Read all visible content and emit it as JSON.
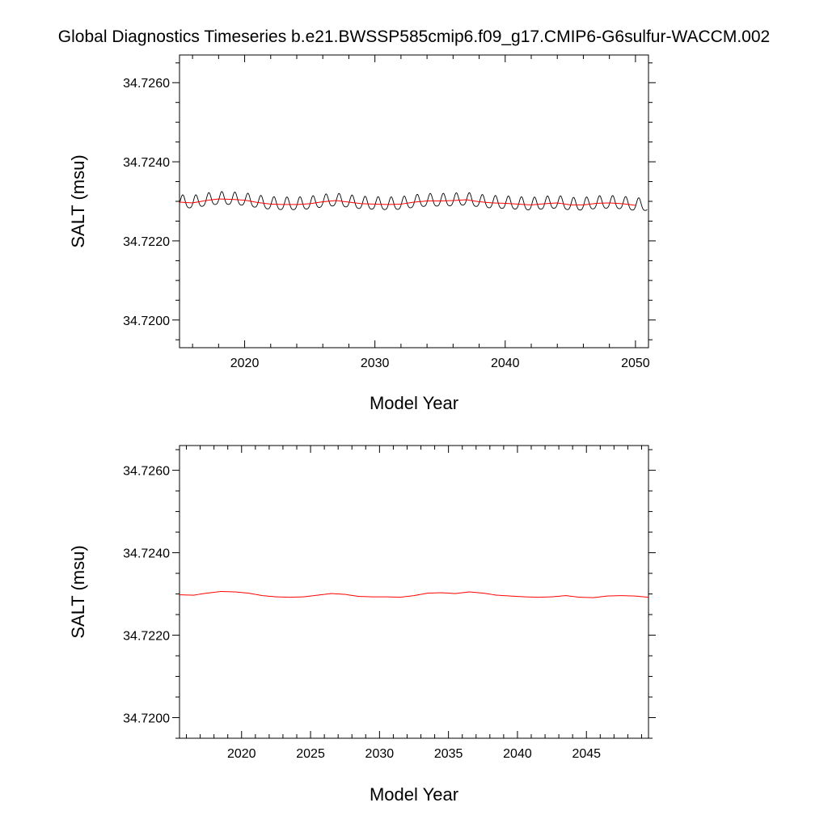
{
  "title": "Global Diagnostics Timeseries b.e21.BWSSP585cmip6.f09_g17.CMIP6-G6sulfur-WACCM.002",
  "colors": {
    "monthly": "#000000",
    "annual": "#ff0000",
    "background": "#ffffff"
  },
  "chart_data": [
    {
      "type": "line",
      "xlabel": "Model Year",
      "ylabel": "SALT (msu)",
      "xlim": [
        2015,
        2051
      ],
      "ylim": [
        34.7193,
        34.7267
      ],
      "xticks": [
        2020,
        2030,
        2040,
        2050
      ],
      "xtick_labels": [
        "2020",
        "2030",
        "2040",
        "2050"
      ],
      "xminor_step": 2,
      "yticks": [
        34.726,
        34.724,
        34.722,
        34.72
      ],
      "ytick_labels": [
        "34.7260",
        "34.7240",
        "34.7220",
        "34.7200"
      ],
      "yminor_step": 0.0005,
      "monthly": {
        "start_year": 2015,
        "end_year": 2050.9,
        "seasonal_amplitude": 0.00016,
        "peak_phase": 0.25
      },
      "series": [
        {
          "role": "annual",
          "color": "#ff0000",
          "x": [
            2015,
            2016,
            2017,
            2018,
            2019,
            2020,
            2021,
            2022,
            2023,
            2024,
            2025,
            2026,
            2027,
            2028,
            2029,
            2030,
            2031,
            2032,
            2033,
            2034,
            2035,
            2036,
            2037,
            2038,
            2039,
            2040,
            2041,
            2042,
            2043,
            2044,
            2045,
            2046,
            2047,
            2048,
            2049,
            2050
          ],
          "y": [
            34.72298,
            34.72296,
            34.72302,
            34.72306,
            34.72305,
            34.72303,
            34.72297,
            34.72293,
            34.72292,
            34.72292,
            34.72294,
            34.72299,
            34.72302,
            34.72298,
            34.72294,
            34.72293,
            34.72292,
            34.72293,
            34.72298,
            34.72301,
            34.72301,
            34.72302,
            34.72304,
            34.72299,
            34.72296,
            34.72295,
            34.72293,
            34.72291,
            34.72294,
            34.72296,
            34.72291,
            34.72291,
            34.72295,
            34.72296,
            34.72294,
            34.7229
          ]
        }
      ]
    },
    {
      "type": "line",
      "xlabel": "Model Year",
      "ylabel": "SALT (msu)",
      "xlim": [
        2015.5,
        2049.5
      ],
      "ylim": [
        34.7195,
        34.7266
      ],
      "xticks": [
        2020,
        2025,
        2030,
        2035,
        2040,
        2045
      ],
      "xtick_labels": [
        "2020",
        "2025",
        "2030",
        "2035",
        "2040",
        "2045"
      ],
      "xminor_step": 1,
      "yticks": [
        34.726,
        34.724,
        34.722,
        34.72
      ],
      "ytick_labels": [
        "34.7260",
        "34.7240",
        "34.7220",
        "34.7200"
      ],
      "yminor_step": 0.0005,
      "series": [
        {
          "role": "annual",
          "color": "#ff0000",
          "x": [
            2015.5,
            2016.5,
            2017.5,
            2018.5,
            2019.5,
            2020.5,
            2021.5,
            2022.5,
            2023.5,
            2024.5,
            2025.5,
            2026.5,
            2027.5,
            2028.5,
            2029.5,
            2030.5,
            2031.5,
            2032.5,
            2033.5,
            2034.5,
            2035.5,
            2036.5,
            2037.5,
            2038.5,
            2039.5,
            2040.5,
            2041.5,
            2042.5,
            2043.5,
            2044.5,
            2045.5,
            2046.5,
            2047.5,
            2048.5,
            2049.5
          ],
          "y": [
            34.72298,
            34.72297,
            34.72302,
            34.72306,
            34.72305,
            34.72302,
            34.72296,
            34.72293,
            34.72292,
            34.72293,
            34.72297,
            34.72301,
            34.72299,
            34.72294,
            34.72293,
            34.72293,
            34.72292,
            34.72296,
            34.72302,
            34.72303,
            34.72301,
            34.72305,
            34.72302,
            34.72297,
            34.72295,
            34.72293,
            34.72292,
            34.72293,
            34.72296,
            34.72292,
            34.72291,
            34.72295,
            34.72296,
            34.72295,
            34.72292
          ]
        }
      ]
    }
  ]
}
